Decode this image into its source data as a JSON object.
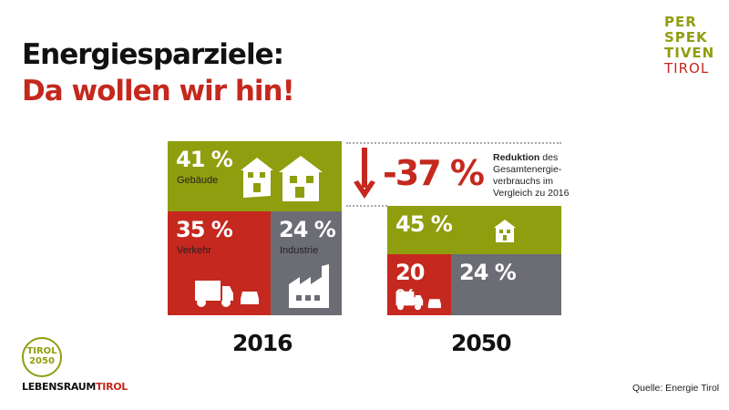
{
  "title": {
    "line1": "Energiesparziele:",
    "line2": "Da wollen wir hin!"
  },
  "logo_top": {
    "lines": [
      "PER",
      "SPEK",
      "TIVEN",
      "TIROL"
    ]
  },
  "colors": {
    "green": "#8f9e0e",
    "red": "#c5281e",
    "grey": "#6c6c75"
  },
  "y2016": {
    "label": "2016",
    "buildings": {
      "pct": "41 %",
      "label": "Gebäude",
      "icon": "house-icon"
    },
    "transport": {
      "pct": "35 %",
      "label": "Verkehr",
      "icon": "truck-car-icon"
    },
    "industry": {
      "pct": "24 %",
      "label": "Industrie",
      "icon": "factory-icon"
    }
  },
  "y2050": {
    "label": "2050",
    "buildings": {
      "pct": "45 %"
    },
    "transport": {
      "pct": "20 %"
    },
    "industry": {
      "pct": "24 %"
    }
  },
  "reduction": {
    "value": "-37 %",
    "text_bold": "Reduktion",
    "text_rest": " des Gesamtenergie-verbrauchs im Vergleich zu 2016"
  },
  "footer": {
    "badge_line1": "TIROL",
    "badge_line2": "2050",
    "brand1": "LEBENSRAUM",
    "brand2": "TIROL",
    "source": "Quelle: Energie Tirol"
  }
}
